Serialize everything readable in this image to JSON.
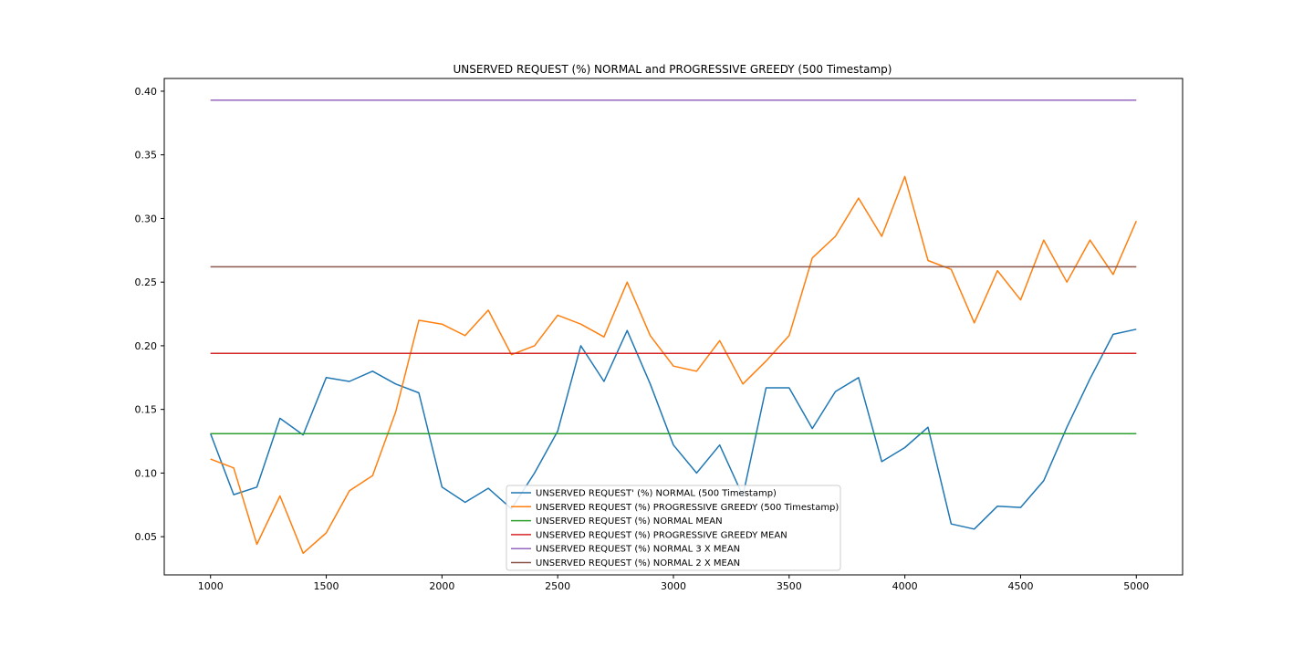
{
  "chart_data": {
    "type": "line",
    "title": "UNSERVED REQUEST (%) NORMAL and PROGRESSIVE GREEDY (500 Timestamp)",
    "xlabel": "",
    "ylabel": "",
    "xlim": [
      800,
      5200
    ],
    "ylim": [
      0.02,
      0.41
    ],
    "xticks": [
      1000,
      1500,
      2000,
      2500,
      3000,
      3500,
      4000,
      4500,
      5000
    ],
    "yticks": [
      0.05,
      0.1,
      0.15,
      0.2,
      0.25,
      0.3,
      0.35,
      0.4
    ],
    "ytick_labels": [
      "0.05",
      "0.10",
      "0.15",
      "0.20",
      "0.25",
      "0.30",
      "0.35",
      "0.40"
    ],
    "grid": false,
    "legend_position": "lower-center",
    "x": [
      1000,
      1100,
      1200,
      1300,
      1400,
      1500,
      1600,
      1700,
      1800,
      1900,
      2000,
      2100,
      2200,
      2300,
      2400,
      2500,
      2600,
      2700,
      2800,
      2900,
      3000,
      3100,
      3200,
      3300,
      3400,
      3500,
      3600,
      3700,
      3800,
      3900,
      4000,
      4100,
      4200,
      4300,
      4400,
      4500,
      4600,
      4700,
      4800,
      4900,
      5000
    ],
    "series": [
      {
        "name": "UNSERVED REQUEST' (%) NORMAL (500 Timestamp)",
        "color": "#1f77b4",
        "values": [
          0.131,
          0.083,
          0.089,
          0.143,
          0.13,
          0.175,
          0.172,
          0.18,
          0.17,
          0.163,
          0.089,
          0.077,
          0.088,
          0.072,
          0.1,
          0.133,
          0.2,
          0.172,
          0.212,
          0.17,
          0.122,
          0.1,
          0.122,
          0.082,
          0.167,
          0.167,
          0.135,
          0.164,
          0.175,
          0.109,
          0.12,
          0.136,
          0.06,
          0.056,
          0.074,
          0.073,
          0.094,
          0.136,
          0.174,
          0.209,
          0.213
        ]
      },
      {
        "name": "UNSERVED REQUEST (%) PROGRESSIVE GREEDY (500 Timestamp)",
        "color": "#ff7f0e",
        "values": [
          0.111,
          0.104,
          0.044,
          0.082,
          0.037,
          0.053,
          0.086,
          0.098,
          0.148,
          0.22,
          0.217,
          0.208,
          0.228,
          0.193,
          0.2,
          0.224,
          0.217,
          0.207,
          0.25,
          0.208,
          0.184,
          0.18,
          0.204,
          0.17,
          0.188,
          0.208,
          0.269,
          0.286,
          0.316,
          0.286,
          0.333,
          0.267,
          0.26,
          0.218,
          0.259,
          0.236,
          0.283,
          0.25,
          0.283,
          0.256,
          0.298
        ]
      },
      {
        "name": "UNSERVED REQUEST (%) NORMAL MEAN",
        "color": "#2ca02c",
        "constant": 0.131
      },
      {
        "name": "UNSERVED REQUEST (%) PROGRESSIVE GREEDY MEAN",
        "color": "#d62728",
        "constant": 0.194
      },
      {
        "name": "UNSERVED REQUEST (%) NORMAL 3 X MEAN",
        "color": "#9467bd",
        "constant": 0.393
      },
      {
        "name": "UNSERVED REQUEST (%) NORMAL 2 X MEAN",
        "color": "#8c564b",
        "constant": 0.262
      }
    ]
  }
}
